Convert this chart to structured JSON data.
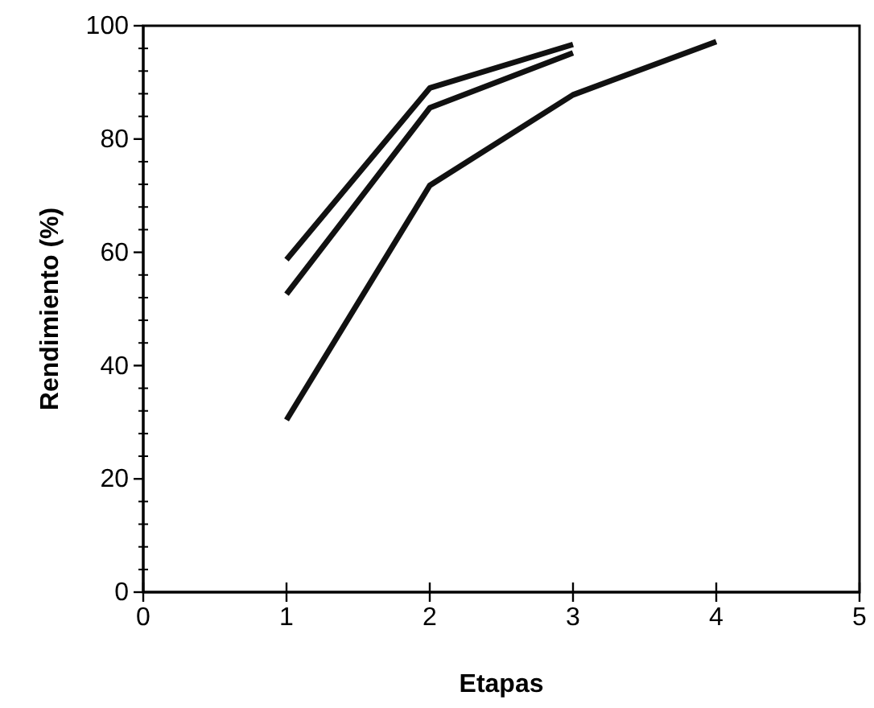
{
  "chart_data": {
    "type": "line",
    "xlabel": "Etapas",
    "ylabel": "Rendimiento (%)",
    "xlim": [
      0,
      5
    ],
    "xticks": [
      0,
      1,
      2,
      3,
      4,
      5
    ],
    "ylim": [
      0,
      100
    ],
    "yticks": [
      0,
      20,
      40,
      60,
      80,
      100
    ],
    "marker": "none",
    "line_style": "solid",
    "series": [
      {
        "color": "#111111",
        "x": [
          1,
          2,
          3
        ],
        "values": [
          58.7,
          89,
          96.7
        ]
      },
      {
        "color": "#111111",
        "x": [
          1,
          2,
          3
        ],
        "values": [
          52.6,
          85.5,
          95.2
        ]
      },
      {
        "color": "#111111",
        "x": [
          1,
          2,
          3,
          4
        ],
        "values": [
          30.4,
          71.8,
          87.8,
          97.2
        ]
      }
    ]
  }
}
